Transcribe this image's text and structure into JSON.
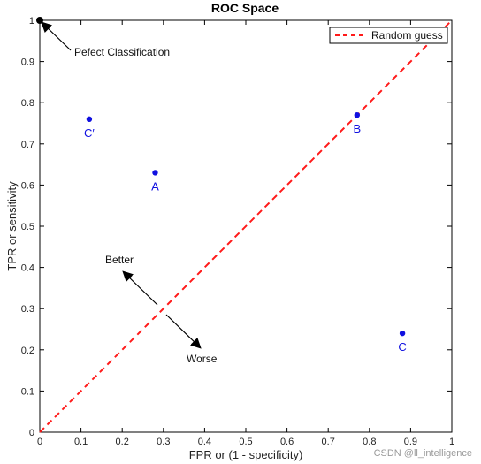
{
  "chart_data": {
    "type": "scatter",
    "title": "ROC Space",
    "xlabel": "FPR or (1 - specificity)",
    "ylabel": "TPR or sensitivity",
    "xlim": [
      0,
      1
    ],
    "ylim": [
      0,
      1
    ],
    "xticks": [
      "0",
      "0.1",
      "0.2",
      "0.3",
      "0.4",
      "0.5",
      "0.6",
      "0.7",
      "0.8",
      "0.9",
      "1"
    ],
    "yticks": [
      "0",
      "0.1",
      "0.2",
      "0.3",
      "0.4",
      "0.5",
      "0.6",
      "0.7",
      "0.8",
      "0.9",
      "1"
    ],
    "grid": false,
    "legend_position": "top-right",
    "series": [
      {
        "name": "Random guess",
        "kind": "line",
        "color": "#ff1a1a",
        "dash": "dashed",
        "x": [
          0,
          1
        ],
        "y": [
          0,
          1
        ]
      }
    ],
    "points": [
      {
        "label": "A",
        "x": 0.28,
        "y": 0.63,
        "color": "#1010e0"
      },
      {
        "label": "B",
        "x": 0.77,
        "y": 0.77,
        "color": "#1010e0"
      },
      {
        "label": "C",
        "x": 0.88,
        "y": 0.24,
        "color": "#1010e0"
      },
      {
        "label": "C′",
        "x": 0.12,
        "y": 0.76,
        "color": "#1010e0"
      },
      {
        "label": "",
        "x": 0,
        "y": 1,
        "color": "#000000"
      }
    ],
    "annotations": {
      "perfect": "Pefect Classification",
      "better": "Better",
      "worse": "Worse"
    }
  },
  "watermark": "CSDN @ll_intelligence"
}
